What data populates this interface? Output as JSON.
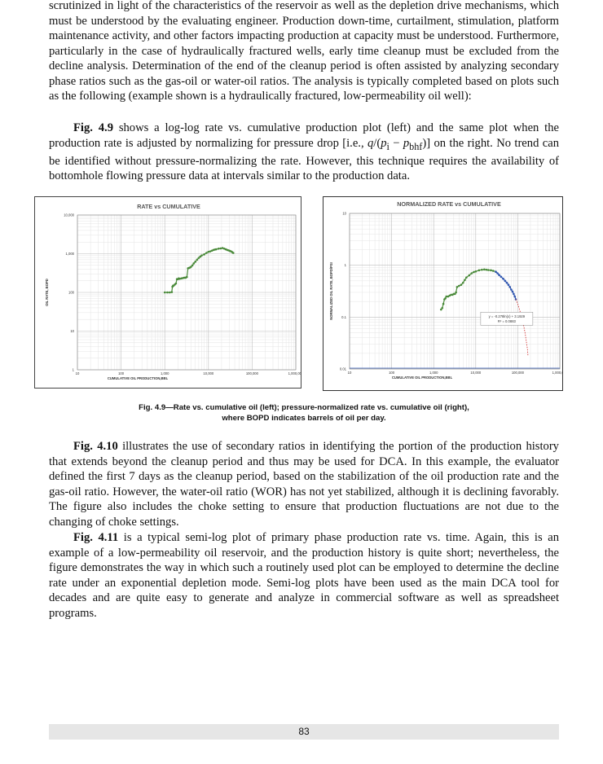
{
  "body": {
    "top_paragraph": "scrutinized in light of the characteristics of the reservoir as well as the depletion drive mechanisms, which must be understood by the evaluating engineer. Production down-time, curtailment, stimulation, platform maintenance activity, and other factors impacting production at capacity must be understood. Furthermore, particularly in the case of hydraulically fractured wells, early time cleanup must be excluded from the decline analysis. Determination of the end of the cleanup period is often assisted by analyzing secondary phase ratios such as the gas-oil or water-oil ratios. The analysis is typically completed based on plots such as the following (example shown is a hydraulically fractured, low-permeability oil well):",
    "fig49_ref": "Fig. 4.9",
    "fig49_text_a": " shows a log-log rate vs. cumulative production plot (left) and the same plot when the production rate is adjusted by normalizing for pressure drop [i.e., ",
    "fig49_formula_q": "q",
    "fig49_formula_mid": "/(",
    "fig49_formula_pi": "p",
    "fig49_formula_i": "i",
    "fig49_formula_minus": " − ",
    "fig49_formula_pbhf": "p",
    "fig49_formula_bhf": "bhf",
    "fig49_formula_end": ")]",
    "fig49_text_b": " on the right. No trend can be identified without pressure-normalizing the rate. However, this technique requires the availability of bottomhole flowing pressure data at intervals similar to the production data.",
    "fig410_ref": "Fig. 4.10",
    "fig410_text": " illustrates the use of secondary ratios in identifying the portion of the production history that extends beyond the cleanup period and thus may be used for DCA. In this example, the evaluator defined the first 7 days as the cleanup period, based on the stabilization of the oil production rate and the gas-oil ratio. However, the water-oil ratio (WOR) has not yet stabilized, although it is declining favorably. The figure also includes the choke setting to ensure that production fluctuations are not due to the changing of choke settings.",
    "fig411_ref": "Fig. 4.11",
    "fig411_text": " is a typical semi-log plot of primary phase production rate vs. time. Again, this is an example of a low-permeability oil reservoir, and the production history is quite short; nevertheless, the figure demonstrates the way in which such a routinely used plot can be employed to determine the decline rate under an exponential depletion mode. Semi-log plots have been used as the main DCA tool for decades and are quite easy to generate and analyze in commercial software as well as spreadsheet programs."
  },
  "figure": {
    "caption_line1": "Fig. 4.9—Rate vs. cumulative oil (left); pressure-normalized rate vs. cumulative oil (right),",
    "caption_line2": "where BOPD indicates barrels of oil per day."
  },
  "footer": {
    "page_number": "83"
  },
  "chart_data": [
    {
      "type": "scatter",
      "title": "RATE vs CUMULATIVE",
      "xlabel": "CUMULATIVE OIL PRODUCTION,BBL",
      "ylabel": "OIL RATE, BOPD",
      "x_scale": "log",
      "y_scale": "log",
      "xlim": [
        10,
        1000000
      ],
      "ylim": [
        1,
        10000
      ],
      "x_ticks": [
        "10",
        "100",
        "1,000",
        "10,000",
        "100,000",
        "1,000,000"
      ],
      "y_ticks": [
        "1",
        "10",
        "100",
        "1,000",
        "10,000"
      ],
      "grid": true,
      "series": [
        {
          "color": "#4a8a3a",
          "x": [
            1000,
            1150,
            1300,
            1450,
            1500,
            1550,
            1600,
            1700,
            1800,
            1900,
            2000,
            2100,
            2200,
            2400,
            2600,
            2800,
            3000,
            3200,
            3400,
            3600,
            3800,
            4000,
            4300,
            4600,
            5000,
            5500,
            6000,
            6500,
            7000,
            8000,
            9000,
            10000,
            11000,
            12000,
            13000,
            14000,
            15000,
            17000,
            19000,
            21000,
            23000,
            25000,
            27000,
            29000,
            31000,
            33000,
            35000,
            37000
          ],
          "y": [
            100,
            100,
            100,
            102,
            140,
            150,
            150,
            160,
            170,
            220,
            220,
            230,
            225,
            230,
            235,
            240,
            240,
            250,
            420,
            430,
            440,
            460,
            500,
            560,
            620,
            700,
            780,
            840,
            900,
            960,
            1050,
            1120,
            1150,
            1200,
            1250,
            1280,
            1300,
            1350,
            1370,
            1400,
            1350,
            1300,
            1250,
            1220,
            1180,
            1150,
            1100,
            1050
          ]
        }
      ]
    },
    {
      "type": "scatter",
      "title": "NORMALIZED RATE vs CUMULATIVE",
      "xlabel": "CUMULATIVE OIL PRODUCTION,BBL",
      "ylabel": "NORMALIZED OIL RATE, BOPD/PSI",
      "x_scale": "log",
      "y_scale": "log",
      "xlim": [
        10,
        1000000
      ],
      "ylim": [
        0.01,
        10
      ],
      "x_ticks": [
        "10",
        "100",
        "1,000",
        "10,000",
        "100,000",
        "1,000,000"
      ],
      "y_ticks": [
        "0.01",
        "0.1",
        "1",
        "10"
      ],
      "grid": true,
      "annotation": [
        "y = -0.278ln(x) + 3.1929",
        "R² = 0.0883"
      ],
      "series": [
        {
          "color": "#4a8a3a",
          "x": [
            1500,
            1600,
            1700,
            1800,
            1900,
            2000,
            2200,
            2400,
            2600,
            2800,
            3000,
            3200,
            3400,
            3600,
            4000,
            4500,
            5000,
            5500,
            6000,
            7000,
            8000,
            9000,
            10000,
            12000,
            14000,
            16000,
            18000,
            20000,
            23000,
            26000,
            30000
          ],
          "y": [
            0.14,
            0.15,
            0.18,
            0.22,
            0.23,
            0.25,
            0.25,
            0.26,
            0.27,
            0.27,
            0.28,
            0.28,
            0.3,
            0.38,
            0.4,
            0.42,
            0.46,
            0.52,
            0.58,
            0.64,
            0.7,
            0.74,
            0.76,
            0.8,
            0.82,
            0.83,
            0.82,
            0.81,
            0.8,
            0.78,
            0.75
          ]
        },
        {
          "color": "#2f56b0",
          "x": [
            30000,
            33000,
            36000,
            40000,
            45000,
            50000,
            55000,
            60000,
            65000,
            70000,
            75000,
            80000,
            85000,
            90000
          ],
          "y": [
            0.75,
            0.7,
            0.65,
            0.6,
            0.55,
            0.5,
            0.46,
            0.42,
            0.38,
            0.34,
            0.31,
            0.28,
            0.25,
            0.22
          ]
        },
        {
          "color": "#d23a3a",
          "x": [
            90000,
            100000,
            110000,
            120000,
            130000,
            140000,
            150000,
            160000,
            170000,
            175000
          ],
          "y": [
            0.22,
            0.18,
            0.14,
            0.11,
            0.085,
            0.065,
            0.048,
            0.034,
            0.024,
            0.018
          ]
        }
      ]
    }
  ]
}
